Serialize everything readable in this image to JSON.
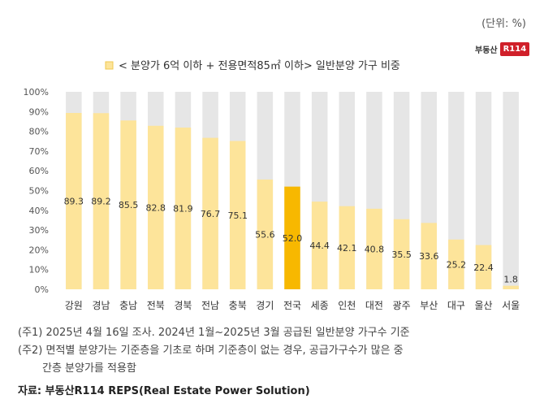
{
  "unit_label": "(단위: %)",
  "logo": {
    "text": "부동산",
    "mark": "R114"
  },
  "chart_data": {
    "type": "bar",
    "legend": "< 분양가 6억 이하 + 전용면적85㎡ 이하> 일반분양 가구 비중",
    "categories": [
      "강원",
      "경남",
      "충남",
      "전북",
      "경북",
      "전남",
      "충북",
      "경기",
      "전국",
      "세종",
      "인천",
      "대전",
      "광주",
      "부산",
      "대구",
      "울산",
      "서울"
    ],
    "values": [
      89.3,
      89.2,
      85.5,
      82.8,
      81.9,
      76.7,
      75.1,
      55.6,
      52.0,
      44.4,
      42.1,
      40.8,
      35.5,
      33.6,
      25.2,
      22.4,
      1.8
    ],
    "value_labels": [
      "89.3",
      "89.2",
      "85.5",
      "82.8",
      "81.9",
      "76.7",
      "75.1",
      "55.6",
      "52.0",
      "44.4",
      "42.1",
      "40.8",
      "35.5",
      "33.6",
      "25.2",
      "22.4",
      "1.8"
    ],
    "highlight_category": "전국",
    "ylim": [
      0,
      100
    ],
    "yticks": [
      "0%",
      "10%",
      "20%",
      "30%",
      "40%",
      "50%",
      "60%",
      "70%",
      "80%",
      "90%",
      "100%"
    ],
    "colors": {
      "bar": "#fde49a",
      "highlight": "#f7b800",
      "background_bar": "#e6e6e6"
    }
  },
  "notes": {
    "note1": "(주1) 2025년 4월 16일 조사. 2024년 1월~2025년 3월 공급된 일반분양 가구수 기준",
    "note2": "(주2) 면적별 분양가는 기준층을 기초로 하며 기준층이 없는 경우, 공급가구수가 많은 중",
    "note2_cont": "간층 분양가를 적용함"
  },
  "source": "자료: 부동산R114 REPS(Real Estate Power Solution)"
}
